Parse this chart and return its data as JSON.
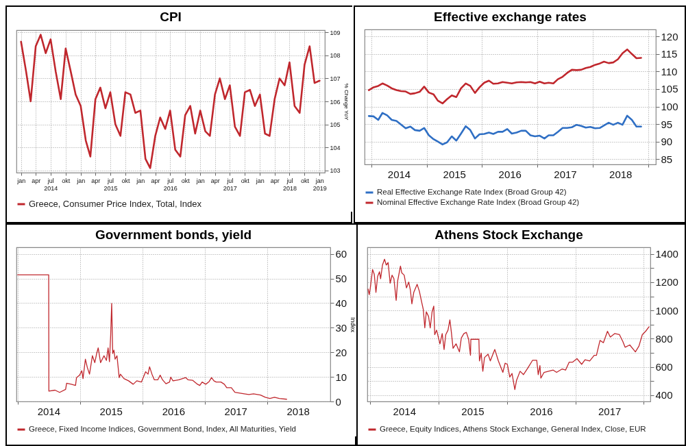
{
  "chart_data": [
    {
      "type": "line",
      "title": "CPI",
      "ylabel": "% Change YoY",
      "x": [
        "2014-01",
        "2014-02",
        "2014-03",
        "2014-04",
        "2014-05",
        "2014-06",
        "2014-07",
        "2014-08",
        "2014-09",
        "2014-10",
        "2014-11",
        "2014-12",
        "2015-01",
        "2015-02",
        "2015-03",
        "2015-04",
        "2015-05",
        "2015-06",
        "2015-07",
        "2015-08",
        "2015-09",
        "2015-10",
        "2015-11",
        "2015-12",
        "2016-01",
        "2016-02",
        "2016-03",
        "2016-04",
        "2016-05",
        "2016-06",
        "2016-07",
        "2016-08",
        "2016-09",
        "2016-10",
        "2016-11",
        "2016-12",
        "2017-01",
        "2017-02",
        "2017-03",
        "2017-04",
        "2017-05",
        "2017-06",
        "2017-07",
        "2017-08",
        "2017-09",
        "2017-10",
        "2017-11",
        "2017-12",
        "2018-01",
        "2018-02",
        "2018-03",
        "2018-04",
        "2018-05",
        "2018-06",
        "2018-07",
        "2018-08",
        "2018-09",
        "2018-10",
        "2018-11",
        "2018-12",
        "2019-01"
      ],
      "series": [
        {
          "name": "Greece, Consumer Price Index, Total, Index",
          "color": "#c0272d",
          "values": [
            108.6,
            107.3,
            106.0,
            108.4,
            108.9,
            108.1,
            108.7,
            107.3,
            106.1,
            108.3,
            107.3,
            106.3,
            105.8,
            104.3,
            103.6,
            106.1,
            106.6,
            105.7,
            106.4,
            105.0,
            104.5,
            106.4,
            106.3,
            105.5,
            105.6,
            103.5,
            103.1,
            104.5,
            105.3,
            104.8,
            105.6,
            103.9,
            103.6,
            105.4,
            105.8,
            104.6,
            105.6,
            104.7,
            104.5,
            106.3,
            107.0,
            106.1,
            106.7,
            104.9,
            104.5,
            106.4,
            106.5,
            105.8,
            106.3,
            104.6,
            104.5,
            106.1,
            107.0,
            106.7,
            107.7,
            105.8,
            105.5,
            107.6,
            108.4,
            106.8,
            106.9
          ]
        }
      ],
      "xlim": [
        "2013-12-04",
        "2019-02-02"
      ],
      "ylim": [
        102.9,
        109.1
      ],
      "xticks": [
        {
          "value": "2014-01",
          "label": "jan"
        },
        {
          "value": "2014-04",
          "label": "apr"
        },
        {
          "value": "2014-07",
          "label": "jul\n2014"
        },
        {
          "value": "2014-10",
          "label": "okt"
        },
        {
          "value": "2015-01",
          "label": "jan"
        },
        {
          "value": "2015-04",
          "label": "apr"
        },
        {
          "value": "2015-07",
          "label": "jul\n2015"
        },
        {
          "value": "2015-10",
          "label": "okt"
        },
        {
          "value": "2016-01",
          "label": "jan"
        },
        {
          "value": "2016-04",
          "label": "apr"
        },
        {
          "value": "2016-07",
          "label": "jul\n2016"
        },
        {
          "value": "2016-10",
          "label": "okt"
        },
        {
          "value": "2017-01",
          "label": "jan"
        },
        {
          "value": "2017-04",
          "label": "apr"
        },
        {
          "value": "2017-07",
          "label": "jul\n2017"
        },
        {
          "value": "2017-10",
          "label": "okt"
        },
        {
          "value": "2018-01",
          "label": "jan"
        },
        {
          "value": "2018-04",
          "label": "apr"
        },
        {
          "value": "2018-07",
          "label": "jul\n2018"
        },
        {
          "value": "2018-10",
          "label": "okt"
        },
        {
          "value": "2019-01",
          "label": "jan\n2019"
        }
      ],
      "yticks": [
        103,
        104,
        105,
        106,
        107,
        108,
        109
      ],
      "grid": true,
      "legend": "bottom"
    },
    {
      "type": "line",
      "title": "Effective exchange rates",
      "x": [
        "2013-12-15",
        "2014-01-15",
        "2014-02-15",
        "2014-03-15",
        "2014-04-15",
        "2014-05-15",
        "2014-06-15",
        "2014-07-15",
        "2014-08-15",
        "2014-09-15",
        "2014-10-15",
        "2014-11-15",
        "2014-12-15",
        "2015-01-15",
        "2015-02-15",
        "2015-03-15",
        "2015-04-15",
        "2015-05-15",
        "2015-06-15",
        "2015-07-15",
        "2015-08-15",
        "2015-09-15",
        "2015-10-15",
        "2015-11-15",
        "2015-12-15",
        "2016-01-15",
        "2016-02-15",
        "2016-03-15",
        "2016-04-15",
        "2016-05-15",
        "2016-06-15",
        "2016-07-15",
        "2016-08-15",
        "2016-09-15",
        "2016-10-15",
        "2016-11-15",
        "2016-12-15",
        "2017-01-15",
        "2017-02-15",
        "2017-03-15",
        "2017-04-15",
        "2017-05-15",
        "2017-06-15",
        "2017-07-15",
        "2017-08-15",
        "2017-09-15",
        "2017-10-15",
        "2017-11-15",
        "2017-12-15",
        "2018-01-15",
        "2018-02-15",
        "2018-03-15",
        "2018-04-15",
        "2018-05-15",
        "2018-06-15",
        "2018-07-15",
        "2018-08-15",
        "2018-09-15",
        "2018-10-15",
        "2018-11-15"
      ],
      "series": [
        {
          "name": "Real Effective Exchange Rate Index (Broad Group 42)",
          "color": "#2f6fc4",
          "values": [
            97.3,
            97.2,
            96.2,
            98.2,
            97.5,
            96.2,
            95.9,
            94.9,
            93.8,
            94.3,
            93.3,
            93.1,
            93.9,
            91.8,
            90.7,
            90.0,
            89.2,
            89.8,
            91.5,
            90.3,
            92.3,
            94.4,
            93.3,
            90.9,
            92.1,
            92.2,
            92.6,
            92.2,
            92.8,
            92.8,
            93.6,
            92.3,
            92.6,
            93.1,
            93.1,
            91.8,
            91.5,
            91.7,
            90.9,
            91.8,
            91.8,
            92.8,
            93.9,
            93.9,
            94.1,
            94.8,
            94.5,
            94.0,
            94.2,
            93.8,
            93.9,
            94.6,
            95.4,
            94.8,
            95.4,
            94.8,
            97.4,
            96.2,
            94.3,
            94.3
          ]
        },
        {
          "name": "Nominal Effective Exchange Rate Index (Broad Group 42)",
          "color": "#c0272d",
          "values": [
            104.7,
            105.5,
            105.9,
            106.6,
            106.0,
            105.2,
            104.7,
            104.4,
            104.3,
            103.6,
            103.8,
            104.2,
            105.7,
            104.0,
            103.5,
            101.7,
            100.9,
            102.1,
            103.2,
            102.7,
            105.2,
            106.6,
            105.9,
            103.9,
            105.5,
            106.8,
            107.4,
            106.5,
            106.6,
            107.0,
            106.8,
            106.6,
            106.9,
            107.0,
            106.9,
            107.0,
            106.6,
            107.1,
            106.6,
            106.8,
            106.6,
            107.8,
            108.5,
            109.6,
            110.5,
            110.4,
            110.5,
            111.0,
            111.3,
            111.9,
            112.3,
            112.8,
            112.4,
            112.6,
            113.5,
            115.2,
            116.3,
            115.0,
            113.8,
            113.9
          ]
        }
      ],
      "xlim": [
        "2013-11-17",
        "2019-02-20"
      ],
      "ylim": [
        83.5,
        122
      ],
      "xticks": [
        {
          "value": "2014-01-01",
          "label": null
        },
        {
          "value": "2015-01-01",
          "label": null
        },
        {
          "value": "2016-01-01",
          "label": null
        },
        {
          "value": "2017-01-01",
          "label": null
        },
        {
          "value": "2018-01-01",
          "label": null
        },
        {
          "value": "2019-01-01",
          "label": null
        },
        {
          "value": "2014-07-01",
          "label": "2014"
        },
        {
          "value": "2015-07-01",
          "label": "2015"
        },
        {
          "value": "2016-07-01",
          "label": "2016"
        },
        {
          "value": "2017-07-01",
          "label": "2017"
        },
        {
          "value": "2018-07-01",
          "label": "2018"
        }
      ],
      "yticks": [
        85,
        90,
        95,
        100,
        105,
        110,
        115,
        120
      ],
      "grid": true,
      "legend": "bottom"
    },
    {
      "type": "line",
      "title": "Government bonds, yield",
      "ylabel": "Index",
      "x": [
        "2014-01-01",
        "2014-07-02",
        "2014-07-03",
        "2014-08-08",
        "2014-09-04",
        "2014-10-09",
        "2014-10-15",
        "2014-11-12",
        "2014-12-06",
        "2014-12-12",
        "2014-12-30",
        "2015-01-12",
        "2015-01-19",
        "2015-02-02",
        "2015-02-13",
        "2015-02-26",
        "2015-03-15",
        "2015-03-29",
        "2015-04-09",
        "2015-04-18",
        "2015-05-02",
        "2015-05-22",
        "2015-06-05",
        "2015-06-15",
        "2015-06-23",
        "2015-06-30",
        "2015-07-06",
        "2015-07-12",
        "2015-07-19",
        "2015-07-26",
        "2015-08-06",
        "2015-08-19",
        "2015-08-26",
        "2015-09-16",
        "2015-10-13",
        "2015-11-09",
        "2015-11-30",
        "2015-12-27",
        "2016-01-21",
        "2016-02-04",
        "2016-02-13",
        "2016-02-27",
        "2016-03-12",
        "2016-04-01",
        "2016-04-15",
        "2016-04-29",
        "2016-05-19",
        "2016-06-09",
        "2016-06-16",
        "2016-06-29",
        "2016-08-02",
        "2016-09-12",
        "2016-09-26",
        "2016-10-23",
        "2016-11-20",
        "2016-12-03",
        "2016-12-17",
        "2017-01-07",
        "2017-01-27",
        "2017-02-10",
        "2017-02-24",
        "2017-03-09",
        "2017-04-06",
        "2017-04-26",
        "2017-05-10",
        "2017-06-06",
        "2017-06-27",
        "2017-08-21",
        "2017-09-17",
        "2017-10-14",
        "2017-11-24",
        "2017-12-22",
        "2018-01-18",
        "2018-02-14",
        "2018-03-14",
        "2018-04-26"
      ],
      "series": [
        {
          "name": "Greece, Fixed Income Indices, Government Bond, Index, All Maturities, Yield",
          "color": "#c0272d",
          "values": [
            51.5,
            51.5,
            4.2,
            4.6,
            3.7,
            4.9,
            7.4,
            7.0,
            6.5,
            9.7,
            10.7,
            12.5,
            9.3,
            17.2,
            13.9,
            11.1,
            18.6,
            15.8,
            19.5,
            21.8,
            15.8,
            18.6,
            16.7,
            21.8,
            16.2,
            26.9,
            39.9,
            19.5,
            20.9,
            17.2,
            18.6,
            9.7,
            11.1,
            9.3,
            8.4,
            7.0,
            8.4,
            7.9,
            12.1,
            11.1,
            14.1,
            11.1,
            8.8,
            8.8,
            10.7,
            8.8,
            7.2,
            7.9,
            9.9,
            8.4,
            8.8,
            9.7,
            8.8,
            8.6,
            7.0,
            6.5,
            7.9,
            7.0,
            8.1,
            9.7,
            8.4,
            7.9,
            7.9,
            7.0,
            5.6,
            5.6,
            3.7,
            3.1,
            2.8,
            3.1,
            2.6,
            1.7,
            1.2,
            1.7,
            1.2,
            0.9
          ]
        }
      ],
      "xlim": [
        "2013-12-25",
        "2019-01-07"
      ],
      "ylim": [
        0,
        62.7
      ],
      "xticks": [
        {
          "value": "2014-01-01",
          "label": null
        },
        {
          "value": "2015-01-01",
          "label": null
        },
        {
          "value": "2016-01-01",
          "label": null
        },
        {
          "value": "2017-01-01",
          "label": null
        },
        {
          "value": "2018-01-01",
          "label": null
        },
        {
          "value": "2014-07-01",
          "label": "2014"
        },
        {
          "value": "2015-07-01",
          "label": "2015"
        },
        {
          "value": "2016-07-01",
          "label": "2016"
        },
        {
          "value": "2017-07-01",
          "label": "2017"
        },
        {
          "value": "2018-07-01",
          "label": "2018"
        }
      ],
      "yticks": [
        0,
        10,
        20,
        30,
        40,
        50,
        60
      ],
      "grid": true,
      "legend": "bottom"
    },
    {
      "type": "line",
      "title": "Athens Stock Exchange",
      "x": [
        "2013-12-20",
        "2013-12-26",
        "2014-01-01",
        "2014-01-13",
        "2014-01-22",
        "2014-01-31",
        "2014-02-09",
        "2014-02-19",
        "2014-02-25",
        "2014-03-07",
        "2014-03-18",
        "2014-03-27",
        "2014-04-06",
        "2014-04-17",
        "2014-04-27",
        "2014-05-07",
        "2014-05-19",
        "2014-05-27",
        "2014-06-11",
        "2014-06-18",
        "2014-07-01",
        "2014-07-13",
        "2014-07-25",
        "2014-08-03",
        "2014-08-11",
        "2014-08-21",
        "2014-09-08",
        "2014-09-20",
        "2014-10-03",
        "2014-10-11",
        "2014-10-19",
        "2014-10-27",
        "2014-11-08",
        "2014-11-17",
        "2014-11-27",
        "2014-12-06",
        "2014-12-11",
        "2014-12-21",
        "2015-01-08",
        "2015-01-20",
        "2015-01-30",
        "2015-02-08",
        "2015-02-20",
        "2015-03-02",
        "2015-03-10",
        "2015-03-19",
        "2015-04-04",
        "2015-04-22",
        "2015-05-02",
        "2015-05-16",
        "2015-05-29",
        "2015-06-10",
        "2015-06-20",
        "2015-06-22",
        "2015-08-04",
        "2015-08-07",
        "2015-08-16",
        "2015-08-25",
        "2015-09-03",
        "2015-09-22",
        "2015-10-04",
        "2015-10-28",
        "2015-11-16",
        "2015-12-10",
        "2015-12-22",
        "2016-01-03",
        "2016-01-16",
        "2016-01-28",
        "2016-02-12",
        "2016-02-21",
        "2016-03-11",
        "2016-03-29",
        "2016-04-22",
        "2016-05-17",
        "2016-06-08",
        "2016-06-16",
        "2016-06-25",
        "2016-06-30",
        "2016-07-17",
        "2016-08-10",
        "2016-09-04",
        "2016-09-22",
        "2016-10-22",
        "2016-11-09",
        "2016-11-28",
        "2016-12-16",
        "2017-01-09",
        "2017-02-03",
        "2017-02-21",
        "2017-03-18",
        "2017-04-11",
        "2017-04-23",
        "2017-05-12",
        "2017-05-30",
        "2017-06-21",
        "2017-07-06",
        "2017-07-30",
        "2017-08-24",
        "2017-09-11",
        "2017-09-23",
        "2017-10-18",
        "2017-11-17",
        "2017-12-06",
        "2017-12-24",
        "2018-01-11",
        "2018-01-29"
      ],
      "series": [
        {
          "name": "Greece, Equity Indices, Athens Stock Exchange, General Index, Close, EUR",
          "color": "#c0272d",
          "values": [
            1152,
            1112,
            1160,
            1290,
            1257,
            1128,
            1241,
            1274,
            1225,
            1322,
            1363,
            1322,
            1339,
            1193,
            1250,
            1225,
            1072,
            1209,
            1314,
            1266,
            1250,
            1160,
            1201,
            1144,
            1047,
            1128,
            1185,
            1136,
            1055,
            1007,
            877,
            991,
            958,
            877,
            991,
            1031,
            829,
            861,
            764,
            837,
            724,
            829,
            861,
            934,
            845,
            732,
            764,
            707,
            805,
            837,
            845,
            796,
            683,
            796,
            796,
            643,
            699,
            570,
            667,
            691,
            643,
            724,
            643,
            562,
            627,
            619,
            529,
            554,
            440,
            505,
            570,
            546,
            594,
            648,
            648,
            546,
            610,
            521,
            562,
            570,
            578,
            562,
            586,
            578,
            634,
            634,
            659,
            619,
            651,
            643,
            683,
            683,
            788,
            772,
            853,
            812,
            837,
            829,
            780,
            740,
            756,
            707,
            748,
            829,
            853,
            885
          ]
        }
      ],
      "xlim": [
        "2013-12-16",
        "2018-02-05"
      ],
      "ylim": [
        356,
        1447
      ],
      "xticks": [
        {
          "value": "2014-01-01",
          "label": null
        },
        {
          "value": "2015-01-01",
          "label": null
        },
        {
          "value": "2016-01-01",
          "label": null
        },
        {
          "value": "2017-01-01",
          "label": null
        },
        {
          "value": "2018-01-01",
          "label": null
        },
        {
          "value": "2014-07-01",
          "label": "2014"
        },
        {
          "value": "2015-07-01",
          "label": "2015"
        },
        {
          "value": "2016-07-01",
          "label": "2016"
        },
        {
          "value": "2017-07-01",
          "label": "2017"
        }
      ],
      "yticks": [
        400,
        {
          "value": 500,
          "label": null
        },
        600,
        {
          "value": 700,
          "label": null
        },
        800,
        {
          "value": 900,
          "label": null
        },
        1000,
        {
          "value": 1100,
          "label": null
        },
        1200,
        {
          "value": 1300,
          "label": null
        },
        1400
      ],
      "grid": true,
      "legend": "bottom"
    }
  ]
}
